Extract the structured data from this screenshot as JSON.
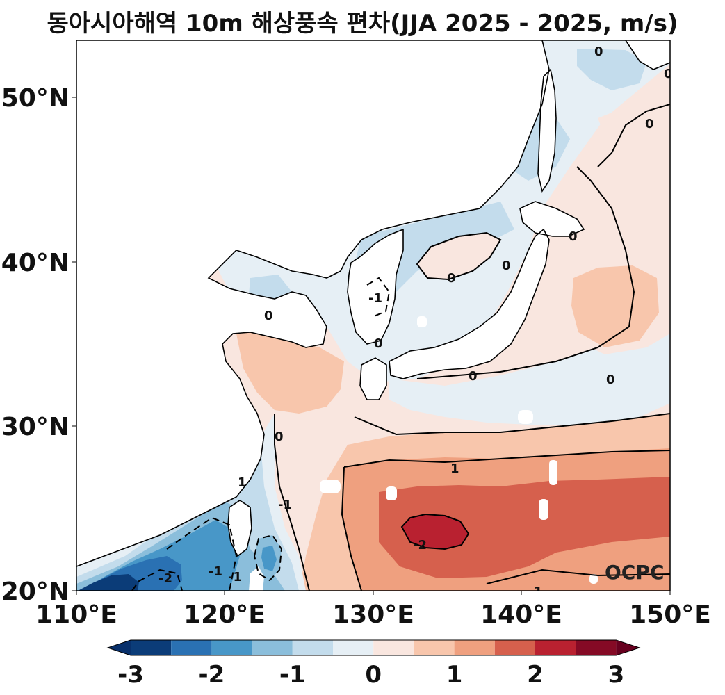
{
  "title": "동아시아해역 10m 해상풍속 편차(JJA 2025 - 2025, m/s)",
  "credit": "OCPC",
  "lat_ticks": [
    "50°N",
    "40°N",
    "30°N",
    "20°N"
  ],
  "lon_ticks": [
    "110°E",
    "120°E",
    "130°E",
    "140°E",
    "150°E"
  ],
  "contour_labels": [
    "0",
    "0",
    "0",
    "0",
    "0",
    "0",
    "0",
    "0",
    "0",
    "0",
    "0",
    "1",
    "1",
    "1",
    "-1",
    "-1",
    "-1",
    "-1",
    "-2",
    "-2"
  ],
  "extent": {
    "lon": [
      110,
      150
    ],
    "lat": [
      20,
      53.5
    ]
  },
  "colorbar": {
    "tick_labels": [
      "-3",
      "-2",
      "-1",
      "0",
      "1",
      "2",
      "3"
    ],
    "colors": [
      "#0b3c78",
      "#2a71b3",
      "#4897c8",
      "#8bbedb",
      "#c3dcec",
      "#e6eff5",
      "#f9e6df",
      "#f8c6ac",
      "#efa07f",
      "#d6604d",
      "#b92130",
      "#850a25"
    ],
    "under_color": "#08306b",
    "over_color": "#67001f"
  },
  "map": {
    "land_color": "#ffffff",
    "coast_color": "#000000",
    "fields": {
      "positive_weak": "#f9e6df",
      "positive_mid": "#f8c6ac",
      "positive_strong": "#efa07f",
      "positive_high": "#d6604d",
      "positive_peak": "#b92130",
      "negative_weak": "#e6eff5",
      "negative_mid": "#c3dcec",
      "negative_strong": "#8bbedb",
      "negative_high": "#4897c8",
      "negative_peak": "#2a71b3",
      "negative_extreme": "#0b3c78"
    }
  }
}
